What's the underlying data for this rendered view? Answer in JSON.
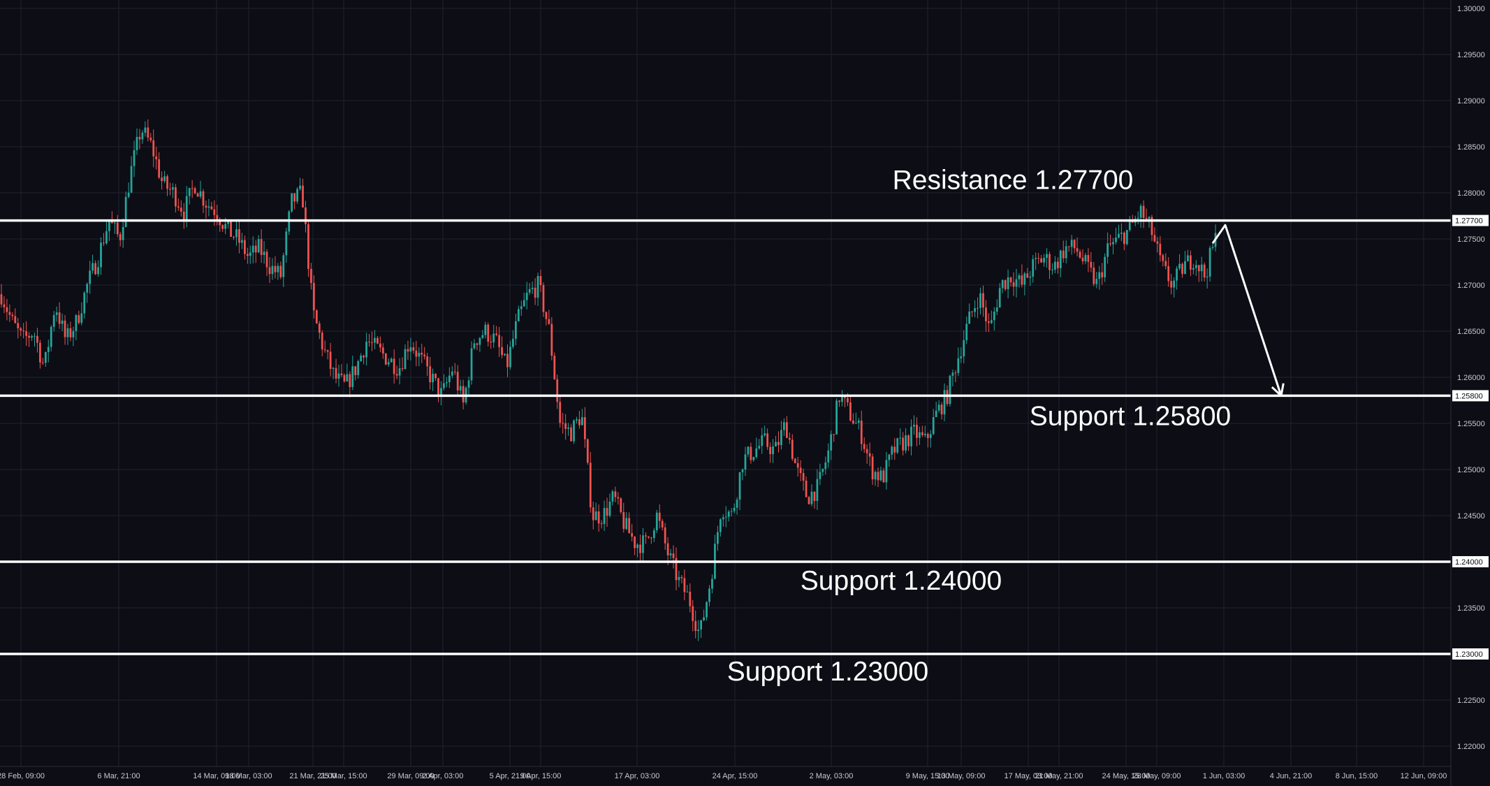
{
  "chart_data": {
    "type": "candlestick",
    "instrument_hint": "",
    "title": "",
    "xlabel": "",
    "ylabel": "",
    "ylim": [
      1.2165,
      1.3015
    ],
    "grid": true,
    "y_ticks": [
      "1.30000",
      "1.29500",
      "1.29000",
      "1.28500",
      "1.28000",
      "1.27500",
      "1.27000",
      "1.26500",
      "1.26000",
      "1.25500",
      "1.25000",
      "1.24500",
      "1.24000",
      "1.23500",
      "1.23000",
      "1.22500",
      "1.22000"
    ],
    "x_ticks": [
      "28 Feb, 09:00",
      "6 Mar, 21:00",
      "14 Mar, 09:00",
      "18 Mar, 03:00",
      "21 Mar, 21:00",
      "25 Mar, 15:00",
      "29 Mar, 09:00",
      "2 Apr, 03:00",
      "5 Apr, 21:00",
      "9 Apr, 15:00",
      "17 Apr, 03:00",
      "24 Apr, 15:00",
      "2 May, 03:00",
      "9 May, 15:00",
      "13 May, 09:00",
      "17 May, 03:00",
      "21 May, 21:00",
      "24 May, 15:00",
      "28 May, 09:00",
      "1 Jun, 03:00",
      "4 Jun, 21:00",
      "8 Jun, 15:00",
      "12 Jun, 09:00"
    ],
    "price_path": [
      1.269,
      1.266,
      1.264,
      1.265,
      1.261,
      1.268,
      1.264,
      1.266,
      1.27,
      1.273,
      1.277,
      1.275,
      1.282,
      1.287,
      1.285,
      1.281,
      1.28,
      1.278,
      1.281,
      1.279,
      1.278,
      1.276,
      1.275,
      1.273,
      1.274,
      1.272,
      1.271,
      1.279,
      1.28,
      1.267,
      1.263,
      1.26,
      1.259,
      1.261,
      1.264,
      1.263,
      1.262,
      1.261,
      1.264,
      1.262,
      1.26,
      1.258,
      1.261,
      1.257,
      1.264,
      1.265,
      1.264,
      1.261,
      1.266,
      1.269,
      1.27,
      1.265,
      1.255,
      1.254,
      1.256,
      1.245,
      1.245,
      1.247,
      1.244,
      1.242,
      1.242,
      1.245,
      1.241,
      1.238,
      1.236,
      1.232,
      1.238,
      1.246,
      1.245,
      1.251,
      1.252,
      1.253,
      1.252,
      1.255,
      1.25,
      1.247,
      1.248,
      1.252,
      1.258,
      1.256,
      1.254,
      1.25,
      1.249,
      1.252,
      1.253,
      1.254,
      1.253,
      1.256,
      1.258,
      1.262,
      1.266,
      1.269,
      1.265,
      1.27,
      1.271,
      1.27,
      1.272,
      1.273,
      1.272,
      1.274,
      1.274,
      1.272,
      1.27,
      1.274,
      1.275,
      1.276,
      1.278,
      1.276,
      1.272,
      1.27,
      1.272,
      1.273,
      1.271,
      1.275
    ],
    "levels": [
      {
        "label": "Resistance 1.27700",
        "tag": "1.27700",
        "value": 1.277
      },
      {
        "label": "Support 1.25800",
        "tag": "1.25800",
        "value": 1.258
      },
      {
        "label": "Support 1.24000",
        "tag": "1.24000",
        "value": 1.24
      },
      {
        "label": "Support 1.23000",
        "tag": "1.23000",
        "value": 1.23
      }
    ],
    "projection": {
      "from": {
        "x_tick": "1 Jun, 03:00",
        "value": 1.2765
      },
      "to": {
        "x_tick": "4 Jun, 21:00",
        "value": 1.258
      }
    },
    "colors": {
      "background": "#0c0d15",
      "grid": "#1f2230",
      "up": "#26a69a",
      "down": "#ef5350",
      "level": "#ffffff",
      "text": "#c9ccd6"
    }
  }
}
